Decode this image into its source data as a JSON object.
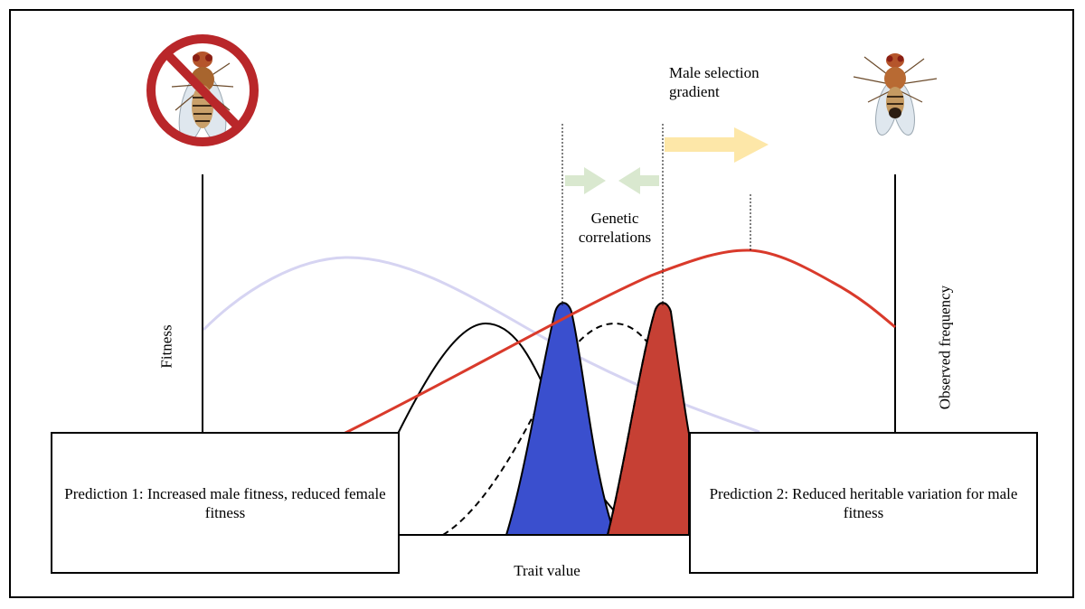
{
  "labels": {
    "fitness_axis": "Fitness",
    "frequency_axis": "Observed frequency",
    "trait_axis": "Trait value",
    "male_selection_line1": "Male selection",
    "male_selection_line2": "gradient",
    "genetic_line1": "Genetic",
    "genetic_line2": "correlations"
  },
  "predictions": [
    {
      "text": "Prediction 1: Increased male fitness, reduced female fitness"
    },
    {
      "text": "Prediction 2: Reduced heritable variation for male fitness"
    }
  ],
  "icons": {
    "left": "prohibited-female-fly-icon",
    "right": "male-fly-icon"
  },
  "colors": {
    "female_fitness": "#d6d4f2",
    "male_fitness": "#d93a2b",
    "female_distribution": "#3a4fce",
    "male_distribution": "#c64034",
    "selection_arrow": "#fde7a8",
    "correlation_arrow": "#d9e8cf",
    "prohibition": "#b9272a"
  }
}
